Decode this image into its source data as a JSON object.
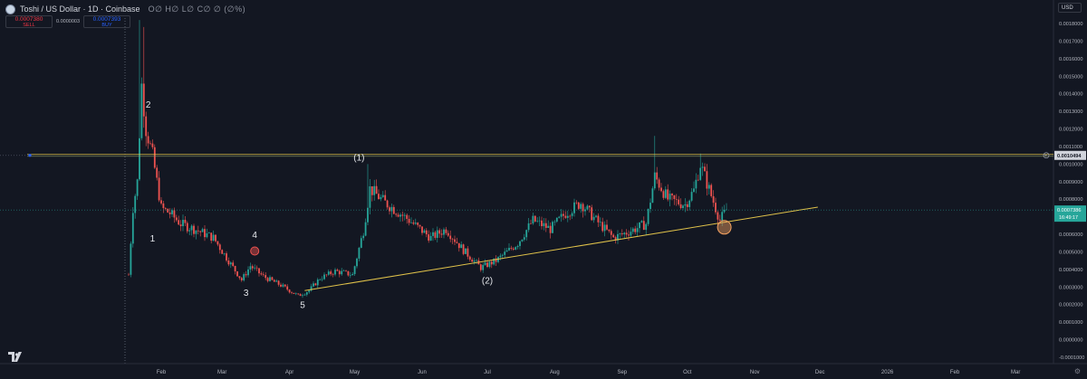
{
  "header": {
    "title": "Toshi / US Dollar · 1D · Coinbase",
    "ohlc": "O∅ H∅ L∅ C∅ ∅ (∅%)"
  },
  "trade": {
    "sell_price": "0.0007380",
    "sell_label": "SELL",
    "spread": "0.0000003",
    "buy_price": "0.0007393",
    "buy_label": "BUY"
  },
  "currency": "USD",
  "colors": {
    "up": "#26a69a",
    "down": "#ef5350",
    "trendline": "#e0c24a",
    "bg": "#131722"
  },
  "chart_data": {
    "type": "candlestick",
    "y_ticks": [
      "0.0018000",
      "0.0017000",
      "0.0016000",
      "0.0015000",
      "0.0014000",
      "0.0013000",
      "0.0012000",
      "0.0011000",
      "0.0010000",
      "0.0009000",
      "0.0008000",
      "0.0007000",
      "0.0006000",
      "0.0005000",
      "0.0004000",
      "0.0003000",
      "0.0002000",
      "0.0001000",
      "0.0000000",
      "-0.0001000"
    ],
    "ylim": [
      -0.0001,
      0.00185
    ],
    "x_ticks": [
      "Feb",
      "Mar",
      "Apr",
      "May",
      "Jun",
      "Jul",
      "Aug",
      "Sep",
      "Oct",
      "Nov",
      "Dec",
      "2026",
      "Feb",
      "Mar"
    ],
    "price_label": "0.0007386",
    "countdown": "16:49:17",
    "level_label": "0.0010494",
    "horizontal_level": 0.0010494,
    "wave_labels": [
      {
        "text": "2",
        "x": "2025-01-26",
        "y": 0.00132
      },
      {
        "text": "1",
        "x": "2025-01-28",
        "y": 0.00056
      },
      {
        "text": "4",
        "x": "2025-03-16",
        "y": 0.00058
      },
      {
        "text": "3",
        "x": "2025-03-12",
        "y": 0.00025
      },
      {
        "text": "5",
        "x": "2025-04-07",
        "y": 0.00018
      },
      {
        "text": "(1)",
        "x": "2025-05-03",
        "y": 0.00102
      },
      {
        "text": "(2)",
        "x": "2025-07-01",
        "y": 0.00032
      }
    ],
    "trendline": {
      "x": [
        "2025-04-08",
        "2025-11-30"
      ],
      "y": [
        0.00028,
        0.000755
      ]
    },
    "circles": [
      {
        "x": "2025-03-16",
        "y": 0.000505,
        "color": "#ef5350"
      },
      {
        "x": "2025-10-18",
        "y": 0.00064,
        "color": "#f4a261"
      }
    ],
    "anchors": [
      {
        "d": "2025-01-17",
        "v": 0.00037
      },
      {
        "d": "2025-01-19",
        "v": 0.00075
      },
      {
        "d": "2025-01-21",
        "v": 0.0009
      },
      {
        "d": "2025-01-23",
        "v": 0.00145
      },
      {
        "d": "2025-01-25",
        "v": 0.0012
      },
      {
        "d": "2025-01-28",
        "v": 0.00105
      },
      {
        "d": "2025-02-01",
        "v": 0.00075
      },
      {
        "d": "2025-02-05",
        "v": 0.00072
      },
      {
        "d": "2025-02-10",
        "v": 0.00066
      },
      {
        "d": "2025-02-18",
        "v": 0.00062
      },
      {
        "d": "2025-02-25",
        "v": 0.00058
      },
      {
        "d": "2025-03-05",
        "v": 0.00043
      },
      {
        "d": "2025-03-10",
        "v": 0.00034
      },
      {
        "d": "2025-03-14",
        "v": 0.00042
      },
      {
        "d": "2025-03-20",
        "v": 0.00036
      },
      {
        "d": "2025-03-28",
        "v": 0.00031
      },
      {
        "d": "2025-04-05",
        "v": 0.00025
      },
      {
        "d": "2025-04-10",
        "v": 0.00028
      },
      {
        "d": "2025-04-15",
        "v": 0.00035
      },
      {
        "d": "2025-04-22",
        "v": 0.00039
      },
      {
        "d": "2025-04-30",
        "v": 0.00037
      },
      {
        "d": "2025-05-05",
        "v": 0.00062
      },
      {
        "d": "2025-05-08",
        "v": 0.00086
      },
      {
        "d": "2025-05-15",
        "v": 0.00078
      },
      {
        "d": "2025-05-25",
        "v": 0.00069
      },
      {
        "d": "2025-06-05",
        "v": 0.00058
      },
      {
        "d": "2025-06-12",
        "v": 0.00063
      },
      {
        "d": "2025-06-20",
        "v": 0.00051
      },
      {
        "d": "2025-06-28",
        "v": 0.00041
      },
      {
        "d": "2025-07-05",
        "v": 0.00045
      },
      {
        "d": "2025-07-15",
        "v": 0.00055
      },
      {
        "d": "2025-07-22",
        "v": 0.00068
      },
      {
        "d": "2025-07-30",
        "v": 0.00063
      },
      {
        "d": "2025-08-06",
        "v": 0.00072
      },
      {
        "d": "2025-08-13",
        "v": 0.00078
      },
      {
        "d": "2025-08-20",
        "v": 0.00068
      },
      {
        "d": "2025-08-28",
        "v": 0.00058
      },
      {
        "d": "2025-09-05",
        "v": 0.00062
      },
      {
        "d": "2025-09-12",
        "v": 0.00066
      },
      {
        "d": "2025-09-16",
        "v": 0.00093
      },
      {
        "d": "2025-09-22",
        "v": 0.0008
      },
      {
        "d": "2025-09-30",
        "v": 0.00077
      },
      {
        "d": "2025-10-04",
        "v": 0.00085
      },
      {
        "d": "2025-10-07",
        "v": 0.001
      },
      {
        "d": "2025-10-12",
        "v": 0.00082
      },
      {
        "d": "2025-10-16",
        "v": 0.00068
      },
      {
        "d": "2025-10-19",
        "v": 0.00074
      }
    ]
  }
}
